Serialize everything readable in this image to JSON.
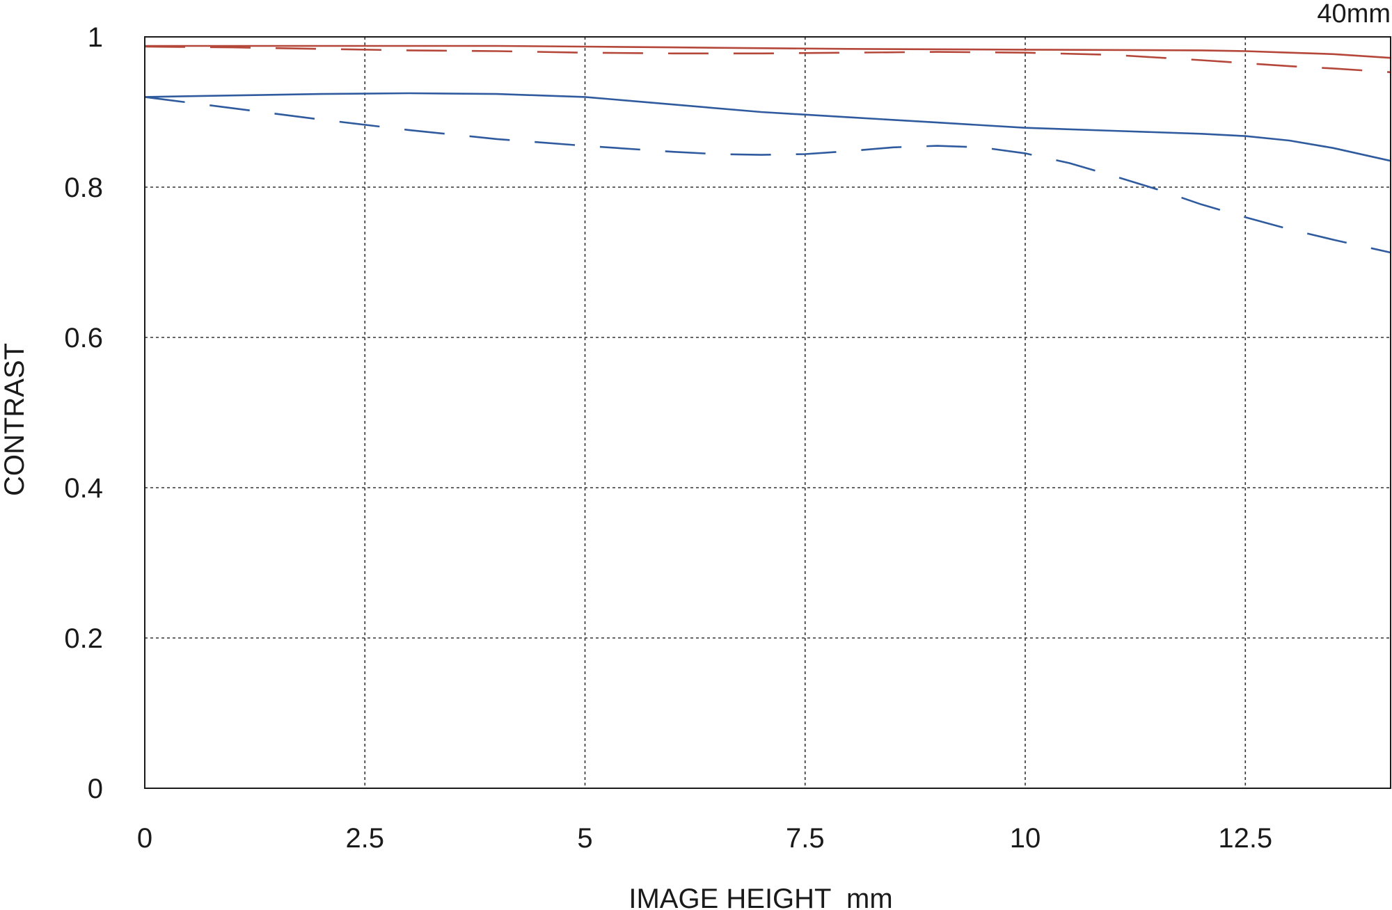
{
  "chart_data": {
    "type": "line",
    "title": "",
    "corner_label": "40mm",
    "xlabel": "IMAGE HEIGHT  mm",
    "ylabel": "CONTRAST",
    "xlim": [
      0,
      14.15
    ],
    "ylim": [
      0,
      1
    ],
    "x_ticks": [
      0,
      2.5,
      5,
      7.5,
      10,
      12.5
    ],
    "x_tick_labels": [
      "0",
      "2.5",
      "5",
      "7.5",
      "10",
      "12.5"
    ],
    "y_ticks": [
      0,
      0.2,
      0.4,
      0.6,
      0.8,
      1
    ],
    "y_tick_labels": [
      "0",
      "0.2",
      "0.4",
      "0.6",
      "0.8",
      "1"
    ],
    "grid": true,
    "legend": "none",
    "series": [
      {
        "color": "#b5473a",
        "dash": "solid",
        "x": [
          0,
          2,
          4,
          5,
          6,
          8,
          10,
          12,
          12.5,
          13,
          13.5,
          14.15
        ],
        "y": [
          0.988,
          0.988,
          0.988,
          0.987,
          0.986,
          0.984,
          0.983,
          0.982,
          0.981,
          0.979,
          0.977,
          0.972
        ]
      },
      {
        "color": "#b5473a",
        "dash": "dashed",
        "x": [
          0,
          1,
          2,
          3,
          4,
          5,
          6,
          7,
          8,
          9,
          10,
          11,
          12,
          12.5,
          13,
          13.5,
          14.15
        ],
        "y": [
          0.987,
          0.986,
          0.984,
          0.982,
          0.981,
          0.979,
          0.978,
          0.978,
          0.979,
          0.98,
          0.979,
          0.976,
          0.969,
          0.965,
          0.961,
          0.958,
          0.953
        ]
      },
      {
        "color": "#2f5b9e",
        "dash": "solid",
        "x": [
          0,
          1,
          2,
          3,
          4,
          5,
          6,
          7,
          8,
          9,
          10,
          11,
          12,
          12.5,
          13,
          13.5,
          14.15
        ],
        "y": [
          0.92,
          0.922,
          0.924,
          0.925,
          0.924,
          0.92,
          0.91,
          0.9,
          0.893,
          0.886,
          0.879,
          0.875,
          0.871,
          0.868,
          0.862,
          0.852,
          0.835
        ]
      },
      {
        "color": "#2f5b9e",
        "dash": "dashed",
        "x": [
          0,
          1,
          2,
          3,
          4,
          5,
          6,
          6.5,
          7,
          7.5,
          8,
          8.5,
          9,
          9.5,
          10,
          10.5,
          11,
          11.5,
          12,
          12.5,
          13,
          13.5,
          14.15
        ],
        "y": [
          0.92,
          0.905,
          0.89,
          0.876,
          0.864,
          0.855,
          0.847,
          0.844,
          0.843,
          0.844,
          0.848,
          0.853,
          0.855,
          0.853,
          0.845,
          0.832,
          0.815,
          0.797,
          0.777,
          0.76,
          0.744,
          0.73,
          0.713
        ]
      }
    ]
  }
}
